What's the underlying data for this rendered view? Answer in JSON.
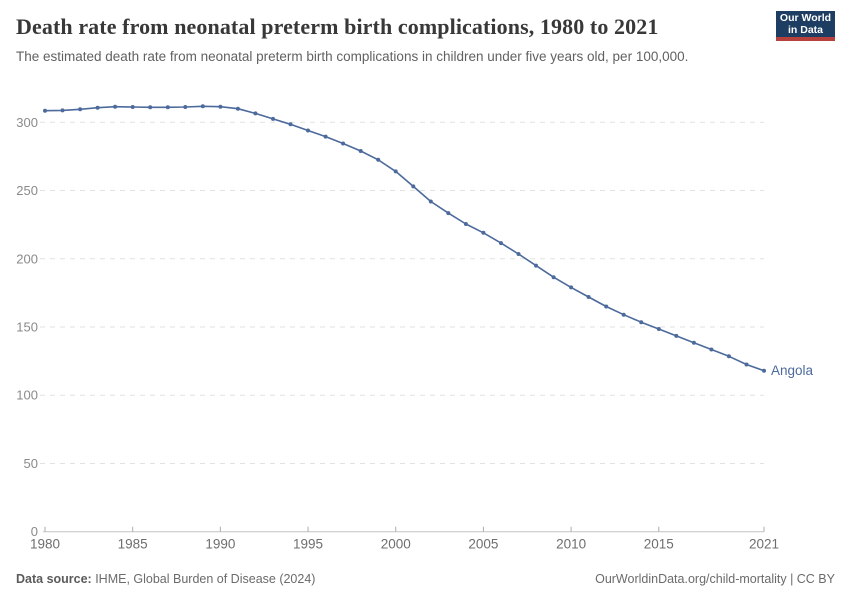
{
  "header": {
    "title": "Death rate from neonatal preterm birth complications, 1980 to 2021",
    "subtitle": "The estimated death rate from neonatal preterm birth complications in children under five years old, per 100,000.",
    "logo": {
      "line1": "Our World",
      "line2": "in Data"
    }
  },
  "footer": {
    "source_label": "Data source:",
    "source_text": " IHME, Global Burden of Disease (2024)",
    "link_text": "OurWorldinData.org/child-mortality | CC BY"
  },
  "colors": {
    "line": "#4c6a9c",
    "entity_label": "#4c6a9c",
    "grid": "#e2e2e2",
    "axis": "#c4c4c4",
    "tick": "#adadad",
    "y_label": "#8a8a8a",
    "x_label": "#6e6e6e",
    "logo_bg": "#1d3d63",
    "logo_red": "#b5403c"
  },
  "chart_data": {
    "type": "line",
    "title": "Death rate from neonatal preterm birth complications, 1980 to 2021",
    "xlabel": "",
    "ylabel": "",
    "xlim": [
      1980,
      2021
    ],
    "ylim": [
      0,
      316
    ],
    "x_ticks": [
      1980,
      1985,
      1990,
      1995,
      2000,
      2005,
      2010,
      2015,
      2021
    ],
    "y_ticks": [
      0,
      50,
      100,
      150,
      200,
      250,
      300
    ],
    "grid": "horizontal-dashed",
    "legend_position": "end-of-line-label",
    "series": [
      {
        "name": "Angola",
        "x": [
          1980,
          1981,
          1982,
          1983,
          1984,
          1985,
          1986,
          1987,
          1988,
          1989,
          1990,
          1991,
          1992,
          1993,
          1994,
          1995,
          1996,
          1997,
          1998,
          1999,
          2000,
          2001,
          2002,
          2003,
          2004,
          2005,
          2006,
          2007,
          2008,
          2009,
          2010,
          2011,
          2012,
          2013,
          2014,
          2015,
          2016,
          2017,
          2018,
          2019,
          2020,
          2021
        ],
        "values": [
          308.5,
          308.7,
          309.5,
          310.7,
          311.4,
          311.2,
          311.0,
          311.0,
          311.2,
          311.7,
          311.4,
          310.0,
          306.5,
          302.5,
          298.5,
          294.0,
          289.5,
          284.5,
          279.0,
          272.5,
          264.0,
          253.0,
          242.0,
          233.5,
          225.5,
          219.0,
          211.5,
          203.5,
          195.0,
          186.5,
          179.0,
          172.0,
          165.0,
          159.0,
          153.5,
          148.5,
          143.5,
          138.5,
          133.5,
          128.5,
          122.5,
          118.0
        ]
      }
    ]
  }
}
